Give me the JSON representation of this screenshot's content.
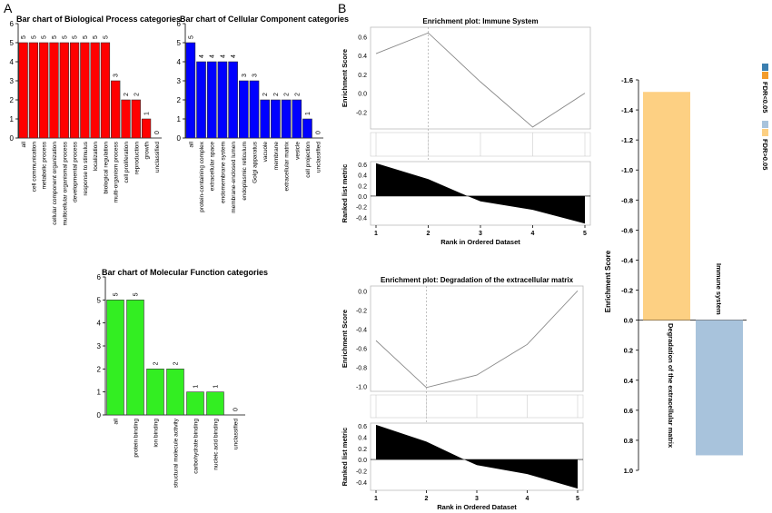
{
  "panels": {
    "a_label": "A",
    "b_label": "B"
  },
  "chart_data": [
    {
      "id": "bp",
      "type": "bar",
      "title": "Bar chart of Biological Process categories",
      "color": "#ff0000",
      "ylim": [
        0,
        6
      ],
      "yticks": [
        0,
        1,
        2,
        3,
        4,
        5,
        6
      ],
      "categories": [
        "all",
        "cell communication",
        "metabolic process",
        "cellular component organization",
        "multicellular organismal process",
        "developmental process",
        "response to stimulus",
        "localization",
        "biological regulation",
        "multi-organism process",
        "cell proliferation",
        "reproduction",
        "growth",
        "unclassified"
      ],
      "values": [
        5,
        5,
        5,
        5,
        5,
        5,
        5,
        5,
        5,
        3,
        2,
        2,
        1,
        0
      ]
    },
    {
      "id": "cc",
      "type": "bar",
      "title": "Bar chart of Cellular Component categories",
      "color": "#0000ff",
      "ylim": [
        0,
        6
      ],
      "yticks": [
        0,
        1,
        2,
        3,
        4,
        5,
        6
      ],
      "categories": [
        "all",
        "protein-containing complex",
        "extracellular space",
        "endomembrane system",
        "membrane-enclosed lumen",
        "endoplasmic reticulum",
        "Golgi apparatus",
        "vacuole",
        "membrane",
        "extracellular matrix",
        "vesicle",
        "cell projection",
        "unclassified"
      ],
      "values": [
        5,
        4,
        4,
        4,
        4,
        3,
        3,
        2,
        2,
        2,
        2,
        1,
        0
      ]
    },
    {
      "id": "mf",
      "type": "bar",
      "title": "Bar chart of Molecular Function categories",
      "color": "#33ee22",
      "ylim": [
        0,
        6
      ],
      "yticks": [
        0,
        1,
        2,
        3,
        4,
        5,
        6
      ],
      "categories": [
        "all",
        "protein binding",
        "ion binding",
        "structural molecule activity",
        "carbohydrate binding",
        "nucleic acid binding",
        "unclassified"
      ],
      "values": [
        5,
        5,
        2,
        2,
        1,
        1,
        0
      ]
    },
    {
      "id": "imm",
      "type": "line",
      "title": "Enrichment plot: Immune System",
      "ylabel": "Enrichment Score",
      "ylabel2": "Ranked list metric",
      "xlabel": "Rank in Ordered Dataset",
      "x": [
        1,
        2,
        3,
        4,
        5
      ],
      "es": [
        0.42,
        0.64,
        0.12,
        -0.36,
        0.0
      ],
      "es_ylim": [
        -0.38,
        0.7
      ],
      "es_ticks": [
        "0.6",
        "0.4",
        "0.2",
        "0.0",
        "-0.2"
      ],
      "metric_x": [
        1,
        2,
        2.75,
        3,
        4,
        5
      ],
      "metric": [
        0.62,
        0.32,
        0.0,
        -0.1,
        -0.26,
        -0.52
      ],
      "metric_ylim": [
        -0.55,
        0.65
      ],
      "metric_ticks": [
        "0.6",
        "0.4",
        "0.2",
        "0.0",
        "-0.2",
        "-0.4"
      ],
      "xticks": [
        "1",
        "2",
        "3",
        "4",
        "5"
      ]
    },
    {
      "id": "ecm",
      "type": "line",
      "title": "Enrichment plot: Degradation of the extracellular matrix",
      "ylabel": "Enrichment Score",
      "ylabel2": "Ranked list metric",
      "xlabel": "Rank in Ordered Dataset",
      "x": [
        1,
        2,
        3,
        4,
        5
      ],
      "es": [
        -0.52,
        -1.01,
        -0.88,
        -0.56,
        0.0
      ],
      "es_ylim": [
        -1.05,
        0.05
      ],
      "es_ticks": [
        "0.0",
        "-0.2",
        "-0.4",
        "-0.6",
        "-0.8",
        "-1.0"
      ],
      "metric_x": [
        1,
        2,
        2.75,
        3,
        4,
        5
      ],
      "metric": [
        0.62,
        0.32,
        0.0,
        -0.1,
        -0.26,
        -0.52
      ],
      "metric_ylim": [
        -0.55,
        0.65
      ],
      "metric_ticks": [
        "0.6",
        "0.4",
        "0.2",
        "0.0",
        "-0.2",
        "-0.4"
      ],
      "xticks": [
        "1",
        "2",
        "3",
        "4",
        "5"
      ]
    },
    {
      "id": "es",
      "type": "bar",
      "ylabel": "Enrichment Score",
      "ylim": [
        -1.6,
        1.0
      ],
      "yticks": [
        "-1.6",
        "-1.4",
        "-1.2",
        "-1.0",
        "-0.8",
        "-0.6",
        "-0.4",
        "-0.2",
        "0.0",
        "0.2",
        "0.4",
        "0.6",
        "0.8",
        "1.0"
      ],
      "categories": [
        "Degradation of the extracellular matrix",
        "Immune system"
      ],
      "values": [
        -1.52,
        0.9
      ],
      "colors": [
        "#fdd083",
        "#a8c3dc"
      ],
      "legend": [
        {
          "label": "FDR<0.05",
          "colors": [
            "#3b7fb0",
            "#f39c2b"
          ]
        },
        {
          "label": "FDR>0.05",
          "colors": [
            "#a8c3dc",
            "#fdd083"
          ]
        }
      ]
    }
  ]
}
